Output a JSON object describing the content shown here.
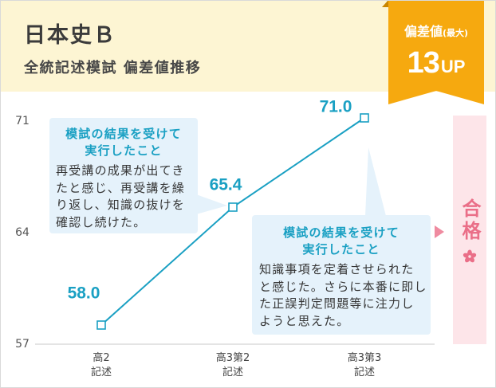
{
  "header": {
    "title": "日本史Ｂ",
    "subtitle": "全統記述模試 偏差値推移",
    "background": "#fdf5d3"
  },
  "badge": {
    "label": "偏差値",
    "label_note": "(最大)",
    "value": "13",
    "unit": "UP",
    "color": "#f6a90f"
  },
  "chart_data": {
    "type": "line",
    "categories": [
      "高2\n記述",
      "高3第2\n記述",
      "高3第3\n記述"
    ],
    "series": [
      {
        "values": [
          58.0,
          65.4,
          71.0
        ],
        "data_labels": [
          "58.0",
          "65.4",
          "71.0"
        ],
        "color": "#1aa0c3"
      }
    ],
    "yticks": [
      57,
      64,
      71
    ],
    "ylim": [
      57,
      71
    ],
    "grid": false,
    "annotations": [
      {
        "title": [
          "模試の結果を受けて",
          "実行したこと"
        ],
        "body": [
          "再受講の成果が出てき",
          "たと感じ、再受講を繰",
          "り返し、知識の抜けを",
          "確認し続けた。"
        ]
      },
      {
        "title": [
          "模試の結果を受けて",
          "実行したこと"
        ],
        "body": [
          "知識事項を定着させられた",
          "と感じた。さらに本番に即し",
          "た正誤判定問題等に注力し",
          "ようと思えた。"
        ]
      }
    ],
    "annotation_background": "#e5f2fb"
  },
  "result": {
    "label": "合格",
    "icon": "sakura-icon",
    "color": "#ea6f88",
    "background": "#fde5e9"
  }
}
